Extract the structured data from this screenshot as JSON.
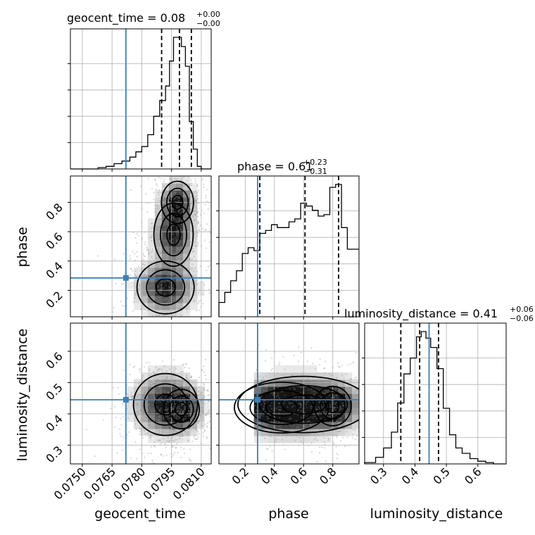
{
  "chart_data": {
    "type": "corner",
    "parameters": [
      "geocent_time",
      "phase",
      "luminosity_distance"
    ],
    "axis_labels": [
      "geocent_time",
      "phase",
      "luminosity_distance"
    ],
    "ranges": {
      "geocent_time": [
        0.0744,
        0.0815
      ],
      "phase": [
        0.02,
        0.98
      ],
      "luminosity_distance": [
        0.24,
        0.69
      ]
    },
    "ticks": {
      "geocent_time": [
        0.075,
        0.0765,
        0.078,
        0.0795,
        0.081
      ],
      "phase": [
        0.2,
        0.4,
        0.6,
        0.8
      ],
      "luminosity_distance": [
        0.3,
        0.4,
        0.5,
        0.6
      ]
    },
    "tick_labels": {
      "geocent_time": [
        "0.0750",
        "0.0765",
        "0.0780",
        "0.0795",
        "0.0810"
      ],
      "phase": [
        "0.2",
        "0.4",
        "0.6",
        "0.8"
      ],
      "luminosity_distance": [
        "0.3",
        "0.4",
        "0.5",
        "0.6"
      ]
    },
    "truths": {
      "geocent_time": 0.0772,
      "phase": 0.285,
      "luminosity_distance": 0.445
    },
    "titles": [
      {
        "param": "geocent_time",
        "text": "geocent_time = 0.08",
        "plus": "+0.00",
        "minus": "−0.00"
      },
      {
        "param": "phase",
        "text": "phase = 0.61",
        "plus": "+0.23",
        "minus": "−0.31"
      },
      {
        "param": "luminosity_distance",
        "text": "luminosity_distance = 0.41",
        "plus": "+0.06",
        "minus": "−0.06"
      }
    ],
    "quantiles": {
      "geocent_time": [
        0.079,
        0.0799,
        0.0805
      ],
      "phase": [
        0.3,
        0.61,
        0.84
      ],
      "luminosity_distance": [
        0.355,
        0.415,
        0.475
      ]
    },
    "histograms": {
      "geocent_time": {
        "edges": [
          0.0744,
          0.0758,
          0.0762,
          0.0766,
          0.077,
          0.0774,
          0.0777,
          0.078,
          0.0783,
          0.0786,
          0.0789,
          0.0792,
          0.0794,
          0.0796,
          0.0798,
          0.08,
          0.0802,
          0.0804,
          0.0806,
          0.0808,
          0.081,
          0.0815
        ],
        "counts": [
          0,
          1,
          2,
          4,
          6,
          9,
          13,
          17,
          26,
          40,
          52,
          63,
          82,
          100,
          100,
          93,
          78,
          36,
          15,
          2,
          0
        ]
      },
      "phase": {
        "edges": [
          0.02,
          0.06,
          0.1,
          0.14,
          0.18,
          0.22,
          0.26,
          0.3,
          0.34,
          0.38,
          0.42,
          0.46,
          0.5,
          0.54,
          0.58,
          0.62,
          0.66,
          0.7,
          0.74,
          0.78,
          0.82,
          0.86,
          0.9,
          0.94,
          0.98
        ],
        "counts": [
          10,
          17,
          25,
          32,
          44,
          48,
          46,
          58,
          60,
          64,
          62,
          62,
          66,
          68,
          79,
          77,
          74,
          70,
          71,
          90,
          92,
          62,
          47,
          47
        ]
      },
      "luminosity_distance": {
        "edges": [
          0.24,
          0.275,
          0.3,
          0.325,
          0.345,
          0.365,
          0.385,
          0.405,
          0.42,
          0.435,
          0.45,
          0.47,
          0.49,
          0.51,
          0.53,
          0.55,
          0.575,
          0.6,
          0.625,
          0.65,
          0.69
        ],
        "counts": [
          1,
          5,
          12,
          24,
          46,
          68,
          80,
          96,
          100,
          95,
          88,
          72,
          42,
          22,
          12,
          8,
          4,
          2,
          1,
          0
        ]
      }
    }
  }
}
